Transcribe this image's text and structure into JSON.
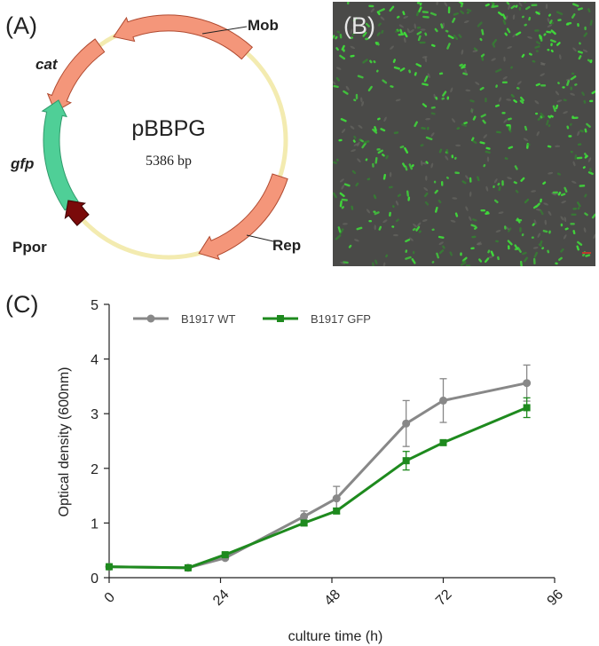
{
  "panels": {
    "a": {
      "label": "(A)",
      "plasmid_name": "pBBPG",
      "plasmid_size": "5386 bp",
      "features": {
        "mob": "Mob",
        "cat": "cat",
        "gfp": "gfp",
        "ppor": "Ppor",
        "rep": "Rep"
      },
      "colors": {
        "backbone": "#f3ebb0",
        "mob": "#f4967a",
        "cat": "#f4967a",
        "rep": "#f4967a",
        "gfp": "#4fcf97",
        "ppor": "#7a0a0a"
      }
    },
    "b": {
      "label": "(B)",
      "colors": {
        "background": "#4a4a48",
        "cell": "#3fdc3a"
      }
    },
    "c": {
      "label": "(C)"
    }
  },
  "chart_data": {
    "type": "line",
    "x": [
      0,
      17,
      25,
      42,
      49,
      64,
      72,
      90
    ],
    "series": [
      {
        "name": "B1917 WT",
        "color": "#888888",
        "values": [
          0.2,
          0.18,
          0.36,
          1.12,
          1.45,
          2.82,
          3.24,
          3.56
        ],
        "errors": [
          0.03,
          0.02,
          0.03,
          0.1,
          0.22,
          0.42,
          0.4,
          0.33
        ]
      },
      {
        "name": "B1917 GFP",
        "color": "#1e8a1e",
        "values": [
          0.2,
          0.18,
          0.42,
          1.0,
          1.22,
          2.14,
          2.47,
          3.11
        ],
        "errors": [
          0.02,
          0.02,
          0.03,
          0.05,
          0.05,
          0.17,
          0.04,
          0.18
        ]
      }
    ],
    "xlabel": "culture time (h)",
    "ylabel": "Optical density (600nm)",
    "xlim": [
      0,
      96
    ],
    "ylim": [
      0,
      5
    ],
    "xticks": [
      "0",
      "24",
      "48",
      "72",
      "96"
    ],
    "yticks": [
      "0",
      "1",
      "2",
      "3",
      "4",
      "5"
    ],
    "grid": false,
    "legend": "top-left"
  }
}
